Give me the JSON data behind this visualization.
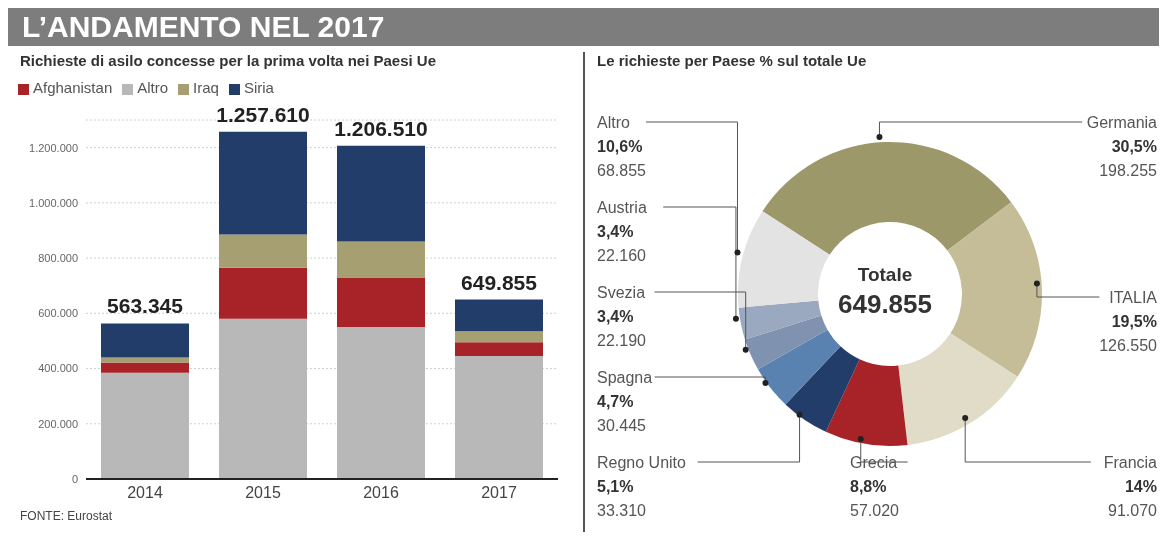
{
  "chart_data": [
    {
      "type": "bar",
      "title": "L’ANDAMENTO NEL 2017",
      "subtitle": "Richieste di asilo concesse per la prima volta nei Paesi Ue",
      "categories": [
        "2014",
        "2015",
        "2016",
        "2017"
      ],
      "stacked": true,
      "series": [
        {
          "name": "Altro",
          "color": "#b8b8b8",
          "values": [
            385000,
            580000,
            550000,
            445000
          ]
        },
        {
          "name": "Afghanistan",
          "color": "#a82328",
          "values": [
            37000,
            185000,
            180000,
            50000
          ]
        },
        {
          "name": "Iraq",
          "color": "#a69f72",
          "values": [
            18000,
            120000,
            130000,
            40000
          ]
        },
        {
          "name": "Siria",
          "color": "#233d6b",
          "values": [
            123345,
            372610,
            346510,
            114855
          ]
        }
      ],
      "ylim": [
        0,
        1300000
      ],
      "yticks": [
        {
          "value": 0,
          "label": "0"
        },
        {
          "value": 200000,
          "label": "200.000"
        },
        {
          "value": 400000,
          "label": "400.000"
        },
        {
          "value": 600000,
          "label": "600.000"
        },
        {
          "value": 800000,
          "label": "800.000"
        },
        {
          "value": 1000000,
          "label": "1.000.000"
        },
        {
          "value": 1200000,
          "label": "1.200.000"
        }
      ],
      "grid": "y",
      "legend": "top left",
      "totals": [
        "563.345",
        "1.257.610",
        "1.206.510",
        "649.855"
      ],
      "annotations": [
        "FONTE: Eurostat"
      ]
    },
    {
      "type": "donut",
      "title": "Le richieste per Paese % sul totale Ue",
      "categories": [
        "Germania",
        "ITALIA",
        "Francia",
        "Grecia",
        "Regno Unito",
        "Spagna",
        "Svezia",
        "Austria",
        "Altro"
      ],
      "values": [
        198255,
        126550,
        91070,
        57020,
        33310,
        30445,
        22190,
        22160,
        68855
      ],
      "colors": [
        "#9c9869",
        "#c4bd98",
        "#e0dcc8",
        "#a82328",
        "#233d6b",
        "#5a82b0",
        "#7f93b0",
        "#9aa8c0",
        "#e3e3e3"
      ],
      "value_labels": [
        "30,5%\n198.255",
        "19,5%\n126.550",
        "14%\n91.070",
        "8,8%\n57.020",
        "5,1%\n33.310",
        "4,7%\n30.445",
        "3,4%\n22.190",
        "3,4%\n22.160",
        "10,6%\n68.855"
      ],
      "legend": false,
      "annotations": [
        "Totale",
        "649.855"
      ]
    }
  ]
}
